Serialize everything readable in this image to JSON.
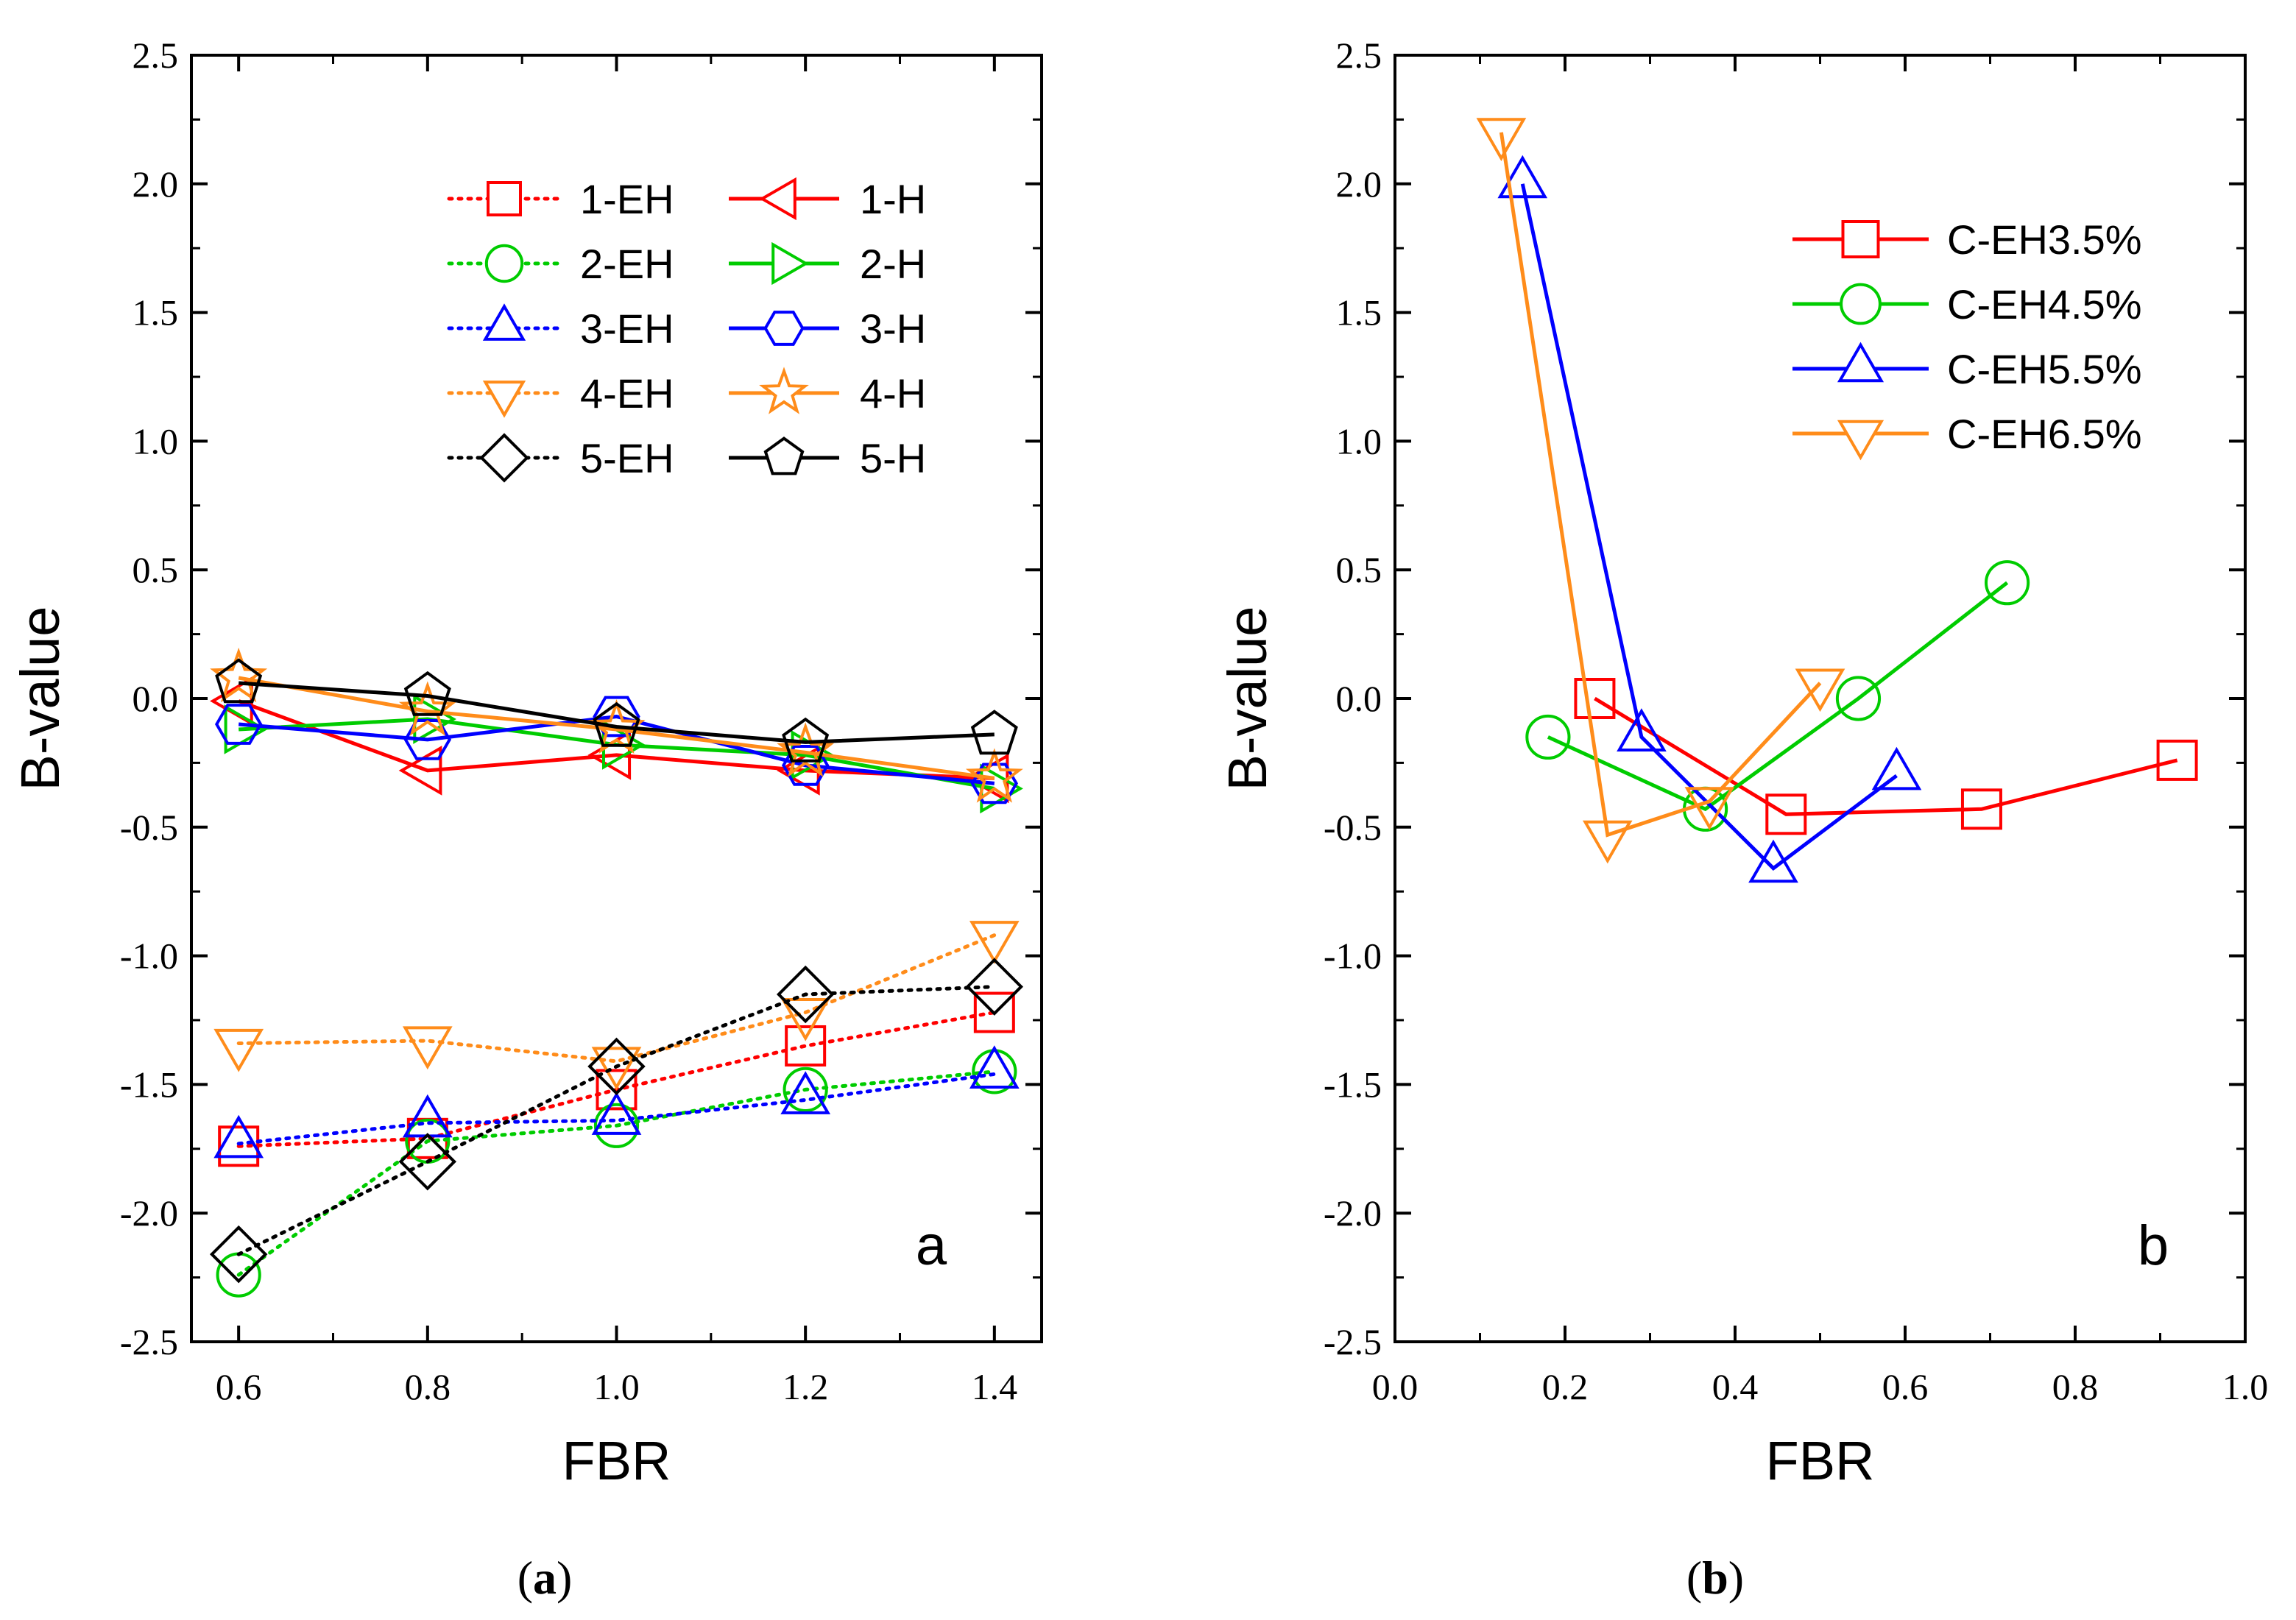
{
  "colors": {
    "red": "#ff0000",
    "green": "#00cc00",
    "blue": "#0000ff",
    "orange": "#ff8c1a",
    "black": "#000000"
  },
  "chart_data": [
    {
      "type": "line",
      "panel_letter": "a",
      "caption_paren_open": "(",
      "caption_letter": "a",
      "caption_paren_close": ")",
      "xlabel": "FBR",
      "ylabel": "B-value",
      "xlim": [
        0.55,
        1.45
      ],
      "ylim": [
        -2.5,
        2.5
      ],
      "xticks": [
        "0.6",
        "0.8",
        "1.0",
        "1.2",
        "1.4"
      ],
      "xtick_values": [
        0.6,
        0.8,
        1.0,
        1.2,
        1.4
      ],
      "yticks": [
        "2.5",
        "2.0",
        "1.5",
        "1.0",
        "0.5",
        "0.0",
        "-0.5",
        "-1.0",
        "-1.5",
        "-2.0",
        "-2.5"
      ],
      "ytick_values": [
        2.5,
        2.0,
        1.5,
        1.0,
        0.5,
        0.0,
        -0.5,
        -1.0,
        -1.5,
        -2.0,
        -2.5
      ],
      "legend_position": "top-right",
      "legend_columns": 2,
      "series": [
        {
          "name": "1-EH",
          "color": "red",
          "marker": "square",
          "dash": "dotted",
          "x": [
            0.6,
            0.8,
            1.0,
            1.2,
            1.4
          ],
          "y": [
            -1.74,
            -1.71,
            -1.52,
            -1.35,
            -1.22
          ]
        },
        {
          "name": "1-H",
          "color": "red",
          "marker": "triangle-left",
          "dash": "solid",
          "x": [
            0.6,
            0.8,
            1.0,
            1.2,
            1.4
          ],
          "y": [
            -0.01,
            -0.28,
            -0.22,
            -0.28,
            -0.31
          ]
        },
        {
          "name": "2-EH",
          "color": "green",
          "marker": "circle",
          "dash": "dotted",
          "x": [
            0.6,
            0.8,
            1.0,
            1.2,
            1.4
          ],
          "y": [
            -2.24,
            -1.72,
            -1.66,
            -1.52,
            -1.45
          ]
        },
        {
          "name": "2-H",
          "color": "green",
          "marker": "triangle-right",
          "dash": "solid",
          "x": [
            0.6,
            0.8,
            1.0,
            1.2,
            1.4
          ],
          "y": [
            -0.12,
            -0.08,
            -0.18,
            -0.22,
            -0.35
          ]
        },
        {
          "name": "3-EH",
          "color": "blue",
          "marker": "triangle-up",
          "dash": "dotted",
          "x": [
            0.6,
            0.8,
            1.0,
            1.2,
            1.4
          ],
          "y": [
            -1.73,
            -1.65,
            -1.64,
            -1.56,
            -1.46
          ]
        },
        {
          "name": "3-H",
          "color": "blue",
          "marker": "hexagon",
          "dash": "solid",
          "x": [
            0.6,
            0.8,
            1.0,
            1.2,
            1.4
          ],
          "y": [
            -0.1,
            -0.16,
            -0.07,
            -0.26,
            -0.33
          ]
        },
        {
          "name": "4-EH",
          "color": "orange",
          "marker": "triangle-down",
          "dash": "dotted",
          "x": [
            0.6,
            0.8,
            1.0,
            1.2,
            1.4
          ],
          "y": [
            -1.34,
            -1.33,
            -1.41,
            -1.22,
            -0.92
          ]
        },
        {
          "name": "4-H",
          "color": "orange",
          "marker": "star",
          "dash": "solid",
          "x": [
            0.6,
            0.8,
            1.0,
            1.2,
            1.4
          ],
          "y": [
            0.08,
            -0.05,
            -0.12,
            -0.21,
            -0.31
          ]
        },
        {
          "name": "5-EH",
          "color": "black",
          "marker": "diamond",
          "dash": "dotted",
          "x": [
            0.6,
            0.8,
            1.0,
            1.2,
            1.4
          ],
          "y": [
            -2.16,
            -1.8,
            -1.43,
            -1.15,
            -1.12
          ]
        },
        {
          "name": "5-H",
          "color": "black",
          "marker": "pentagon",
          "dash": "solid",
          "x": [
            0.6,
            0.8,
            1.0,
            1.2,
            1.4
          ],
          "y": [
            0.06,
            0.01,
            -0.11,
            -0.17,
            -0.14
          ]
        }
      ]
    },
    {
      "type": "line",
      "panel_letter": "b",
      "caption_paren_open": "(",
      "caption_letter": "b",
      "caption_paren_close": ")",
      "xlabel": "FBR",
      "ylabel": "B-value",
      "xlim": [
        0.0,
        1.0
      ],
      "ylim": [
        -2.5,
        2.5
      ],
      "xticks": [
        "0.0",
        "0.2",
        "0.4",
        "0.6",
        "0.8",
        "1.0"
      ],
      "xtick_values": [
        0.0,
        0.2,
        0.4,
        0.6,
        0.8,
        1.0
      ],
      "yticks": [
        "2.5",
        "2.0",
        "1.5",
        "1.0",
        "0.5",
        "0.0",
        "-0.5",
        "-1.0",
        "-1.5",
        "-2.0",
        "-2.5"
      ],
      "ytick_values": [
        2.5,
        2.0,
        1.5,
        1.0,
        0.5,
        0.0,
        -0.5,
        -1.0,
        -1.5,
        -2.0,
        -2.5
      ],
      "legend_position": "top-right",
      "legend_columns": 1,
      "series": [
        {
          "name": "C-EH3.5%",
          "color": "red",
          "marker": "square",
          "dash": "solid",
          "x": [
            0.235,
            0.46,
            0.69,
            0.92
          ],
          "y": [
            0.0,
            -0.45,
            -0.43,
            -0.24
          ]
        },
        {
          "name": "C-EH4.5%",
          "color": "green",
          "marker": "circle",
          "dash": "solid",
          "x": [
            0.18,
            0.365,
            0.545,
            0.72
          ],
          "y": [
            -0.15,
            -0.43,
            0.0,
            0.45
          ]
        },
        {
          "name": "C-EH5.5%",
          "color": "blue",
          "marker": "triangle-up",
          "dash": "solid",
          "x": [
            0.15,
            0.29,
            0.445,
            0.59
          ],
          "y": [
            2.0,
            -0.15,
            -0.66,
            -0.3
          ]
        },
        {
          "name": "C-EH6.5%",
          "color": "orange",
          "marker": "triangle-down",
          "dash": "solid",
          "x": [
            0.125,
            0.25,
            0.37,
            0.5
          ],
          "y": [
            2.2,
            -0.53,
            -0.4,
            0.06
          ]
        }
      ]
    }
  ]
}
